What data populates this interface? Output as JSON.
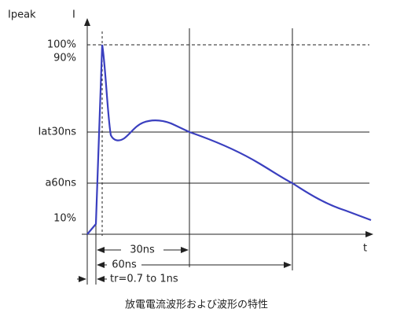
{
  "header": {
    "y_axis_label": "Ipeak",
    "y_axis_symbol": "I",
    "x_axis_symbol": "t"
  },
  "levels": [
    "100%",
    "90%",
    "Iat30ns",
    "a60ns",
    "10%"
  ],
  "dimensions": [
    "30ns",
    "60ns",
    "tr=0.7 to 1ns"
  ],
  "caption": "放電電流波形および波形の特性"
}
